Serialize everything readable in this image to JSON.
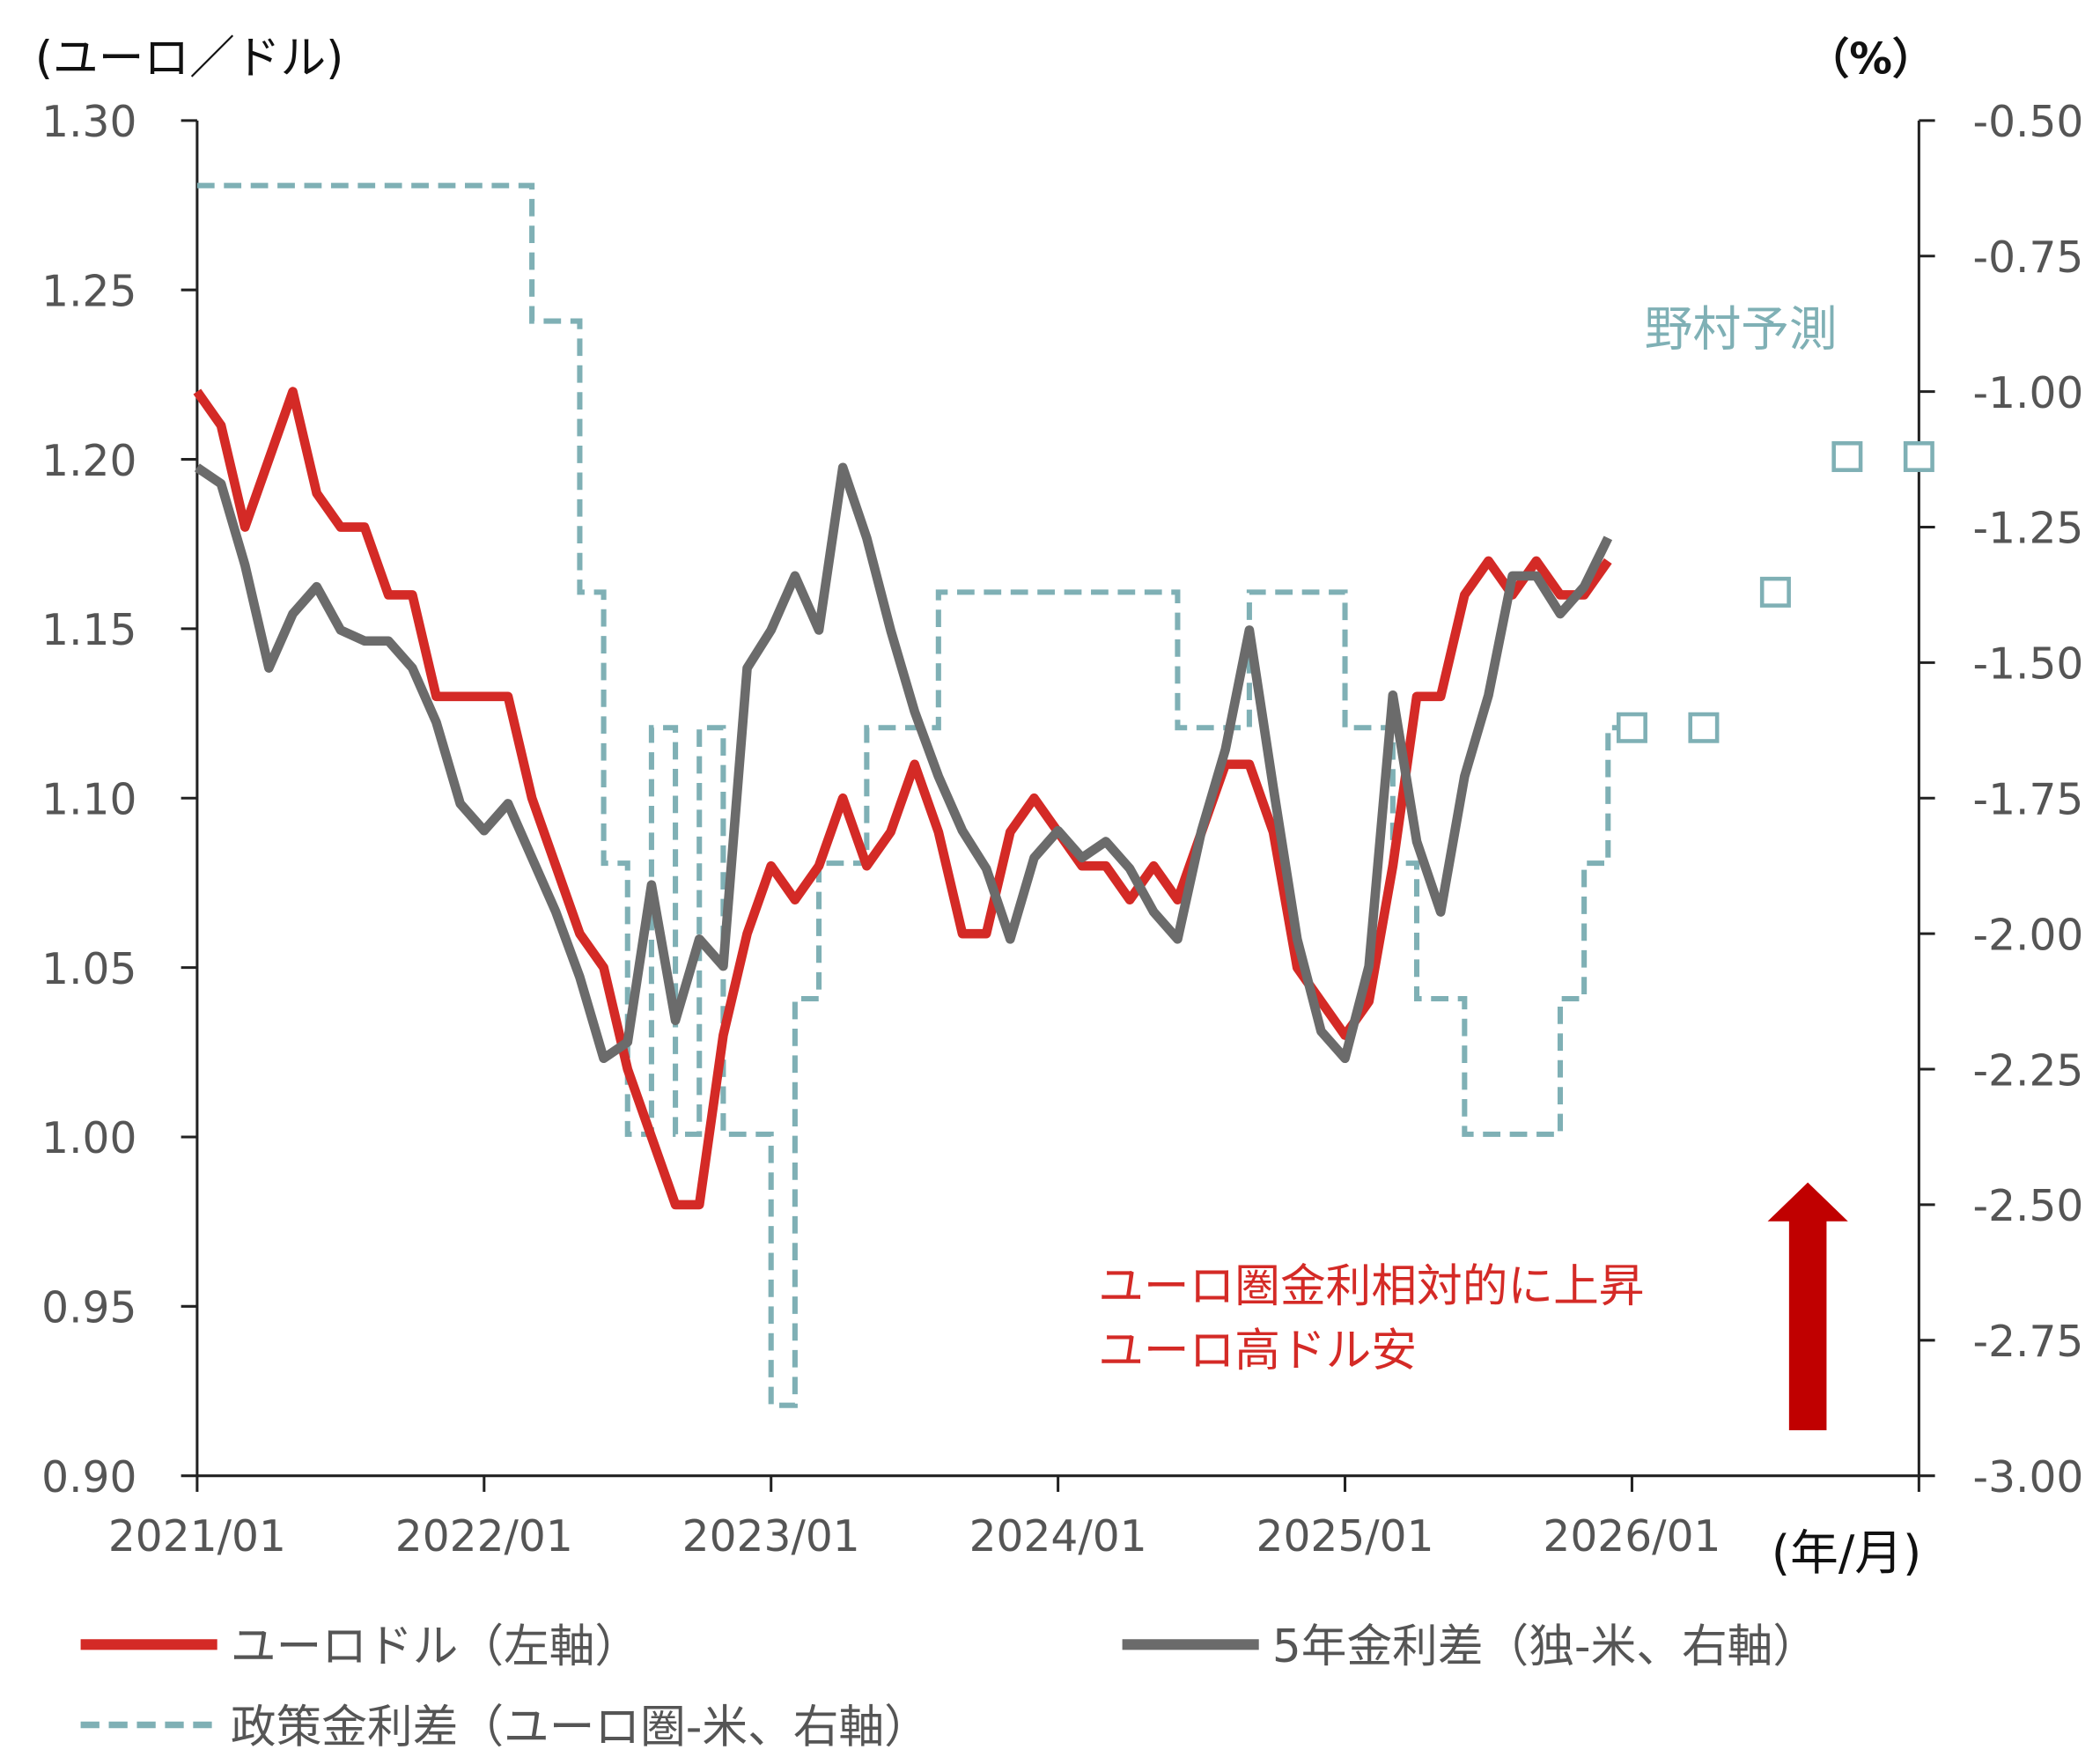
{
  "chart_data": {
    "type": "line",
    "left_axis": {
      "label": "(ユーロ／ドル)",
      "ylim": [
        0.9,
        1.3
      ],
      "ticks": [
        "1.30",
        "1.25",
        "1.20",
        "1.15",
        "1.10",
        "1.05",
        "1.00",
        "0.95",
        "0.90"
      ]
    },
    "right_axis": {
      "label": "（%）",
      "ylim": [
        -3.0,
        -0.5
      ],
      "ticks": [
        "-0.50",
        "-0.75",
        "-1.00",
        "-1.25",
        "-1.50",
        "-1.75",
        "-2.00",
        "-2.25",
        "-2.50",
        "-2.75",
        "-3.00"
      ]
    },
    "x_axis": {
      "label": "(年/月)",
      "range": [
        "2021/01",
        "2027/01"
      ],
      "ticks": [
        "2021/01",
        "2022/01",
        "2023/01",
        "2024/01",
        "2025/01",
        "2026/01"
      ]
    },
    "grid": false,
    "legend_placement": "bottom",
    "forecast_label": "野村予測",
    "annotation": [
      "ユーロ圏金利相対的に上昇",
      "ユーロ高ドル安"
    ],
    "colors": {
      "eurusd": "#d42a26",
      "spread5y": "#6b6b6b",
      "policy": "#7fb0b5",
      "arrow": "#c00000"
    },
    "series": [
      {
        "name": "ユーロドル（左軸）",
        "axis": "left",
        "style": "solid",
        "x": [
          "2021/01",
          "2021/02",
          "2021/03",
          "2021/04",
          "2021/05",
          "2021/06",
          "2021/07",
          "2021/08",
          "2021/09",
          "2021/10",
          "2021/11",
          "2021/12",
          "2022/01",
          "2022/02",
          "2022/03",
          "2022/04",
          "2022/05",
          "2022/06",
          "2022/07",
          "2022/08",
          "2022/09",
          "2022/10",
          "2022/11",
          "2022/12",
          "2023/01",
          "2023/02",
          "2023/03",
          "2023/04",
          "2023/05",
          "2023/06",
          "2023/07",
          "2023/08",
          "2023/09",
          "2023/10",
          "2023/11",
          "2023/12",
          "2024/01",
          "2024/02",
          "2024/03",
          "2024/04",
          "2024/05",
          "2024/06",
          "2024/07",
          "2024/08",
          "2024/09",
          "2024/10",
          "2024/11",
          "2024/12",
          "2025/01",
          "2025/02",
          "2025/03",
          "2025/04",
          "2025/05",
          "2025/06",
          "2025/07",
          "2025/08",
          "2025/09",
          "2025/10",
          "2025/11",
          "2025/12"
        ],
        "values": [
          1.22,
          1.21,
          1.18,
          1.2,
          1.22,
          1.19,
          1.18,
          1.18,
          1.16,
          1.16,
          1.13,
          1.13,
          1.13,
          1.13,
          1.1,
          1.08,
          1.06,
          1.05,
          1.02,
          1.0,
          0.98,
          0.98,
          1.03,
          1.06,
          1.08,
          1.07,
          1.08,
          1.1,
          1.08,
          1.09,
          1.11,
          1.09,
          1.06,
          1.06,
          1.09,
          1.1,
          1.09,
          1.08,
          1.08,
          1.07,
          1.08,
          1.07,
          1.09,
          1.11,
          1.11,
          1.09,
          1.05,
          1.04,
          1.03,
          1.04,
          1.08,
          1.13,
          1.13,
          1.16,
          1.17,
          1.16,
          1.17,
          1.16,
          1.16,
          1.17
        ]
      },
      {
        "name": "5年金利差（独-米、右軸）",
        "axis": "right",
        "style": "solid",
        "x": [
          "2021/01",
          "2021/02",
          "2021/03",
          "2021/04",
          "2021/05",
          "2021/06",
          "2021/07",
          "2021/08",
          "2021/09",
          "2021/10",
          "2021/11",
          "2021/12",
          "2022/01",
          "2022/02",
          "2022/03",
          "2022/04",
          "2022/05",
          "2022/06",
          "2022/07",
          "2022/08",
          "2022/09",
          "2022/10",
          "2022/11",
          "2022/12",
          "2023/01",
          "2023/02",
          "2023/03",
          "2023/04",
          "2023/05",
          "2023/06",
          "2023/07",
          "2023/08",
          "2023/09",
          "2023/10",
          "2023/11",
          "2023/12",
          "2024/01",
          "2024/02",
          "2024/03",
          "2024/04",
          "2024/05",
          "2024/06",
          "2024/07",
          "2024/08",
          "2024/09",
          "2024/10",
          "2024/11",
          "2024/12",
          "2025/01",
          "2025/02",
          "2025/03",
          "2025/04",
          "2025/05",
          "2025/06",
          "2025/07",
          "2025/08",
          "2025/09",
          "2025/10",
          "2025/11",
          "2025/12"
        ],
        "values": [
          -1.14,
          -1.17,
          -1.32,
          -1.51,
          -1.41,
          -1.36,
          -1.44,
          -1.46,
          -1.46,
          -1.51,
          -1.61,
          -1.76,
          -1.81,
          -1.76,
          -1.86,
          -1.96,
          -2.08,
          -2.23,
          -2.2,
          -1.91,
          -2.16,
          -2.01,
          -2.06,
          -1.51,
          -1.44,
          -1.34,
          -1.44,
          -1.14,
          -1.27,
          -1.44,
          -1.59,
          -1.71,
          -1.81,
          -1.88,
          -2.01,
          -1.86,
          -1.81,
          -1.86,
          -1.83,
          -1.88,
          -1.96,
          -2.01,
          -1.81,
          -1.66,
          -1.44,
          -1.73,
          -2.01,
          -2.18,
          -2.23,
          -2.06,
          -1.56,
          -1.83,
          -1.96,
          -1.71,
          -1.56,
          -1.34,
          -1.34,
          -1.41,
          -1.36,
          -1.27
        ]
      },
      {
        "name": "政策金利差（ユーロ圏-米、右軸）",
        "axis": "right",
        "style": "dashed-step",
        "x": [
          "2021/01",
          "2022/03",
          "2022/05",
          "2022/06",
          "2022/07",
          "2022/08",
          "2022/09",
          "2022/10",
          "2022/11",
          "2022/12",
          "2023/01",
          "2023/02",
          "2023/03",
          "2023/05",
          "2023/08",
          "2024/06",
          "2024/09",
          "2025/01",
          "2025/03",
          "2025/04",
          "2025/06",
          "2025/10",
          "2025/11",
          "2025/12",
          "2026/01"
        ],
        "values": [
          -0.62,
          -0.87,
          -1.37,
          -1.87,
          -2.37,
          -1.62,
          -2.37,
          -1.62,
          -2.37,
          -2.37,
          -2.87,
          -2.12,
          -1.87,
          -1.62,
          -1.37,
          -1.62,
          -1.37,
          -1.62,
          -1.87,
          -2.12,
          -2.37,
          -2.12,
          -1.87,
          -1.62,
          -1.62
        ]
      },
      {
        "name": "野村予測",
        "axis": "right",
        "style": "square-markers",
        "x": [
          "2026/01",
          "2026/04",
          "2026/07",
          "2026/10",
          "2027/01"
        ],
        "values": [
          -1.62,
          -1.62,
          -1.37,
          -1.12,
          -1.12
        ]
      }
    ]
  }
}
